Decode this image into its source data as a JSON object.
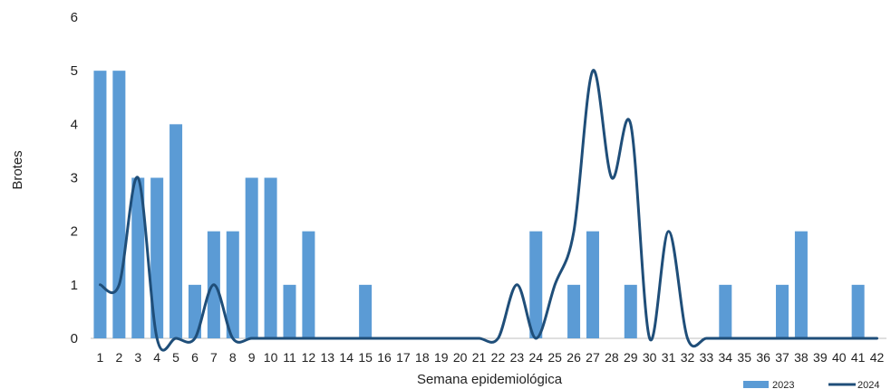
{
  "chart_data": {
    "type": "bar",
    "xlabel": "Semana epidemiológica",
    "ylabel": "Brotes",
    "ylim": [
      0,
      6
    ],
    "yticks": [
      "0",
      "1",
      "2",
      "3",
      "4",
      "5",
      "6"
    ],
    "grid": false,
    "legend_position": "bottom-right",
    "categories": [
      "1",
      "2",
      "3",
      "4",
      "5",
      "6",
      "7",
      "8",
      "9",
      "10",
      "11",
      "12",
      "13",
      "14",
      "15",
      "16",
      "17",
      "18",
      "19",
      "20",
      "21",
      "22",
      "23",
      "24",
      "25",
      "26",
      "27",
      "28",
      "29",
      "30",
      "31",
      "32",
      "33",
      "34",
      "35",
      "36",
      "37",
      "38",
      "39",
      "40",
      "41",
      "42"
    ],
    "series": [
      {
        "name": "2023",
        "type": "bar",
        "color": "#5B9BD5",
        "values": [
          5,
          5,
          3,
          3,
          4,
          1,
          2,
          2,
          3,
          3,
          1,
          2,
          0,
          0,
          1,
          0,
          0,
          0,
          0,
          0,
          0,
          0,
          0,
          2,
          0,
          1,
          2,
          0,
          1,
          0,
          0,
          0,
          0,
          1,
          0,
          0,
          1,
          2,
          0,
          0,
          1,
          0
        ]
      },
      {
        "name": "2024",
        "type": "line",
        "smooth": true,
        "color": "#1F4E79",
        "values": [
          1,
          1,
          3,
          0,
          0,
          0,
          1,
          0,
          0,
          0,
          0,
          0,
          0,
          0,
          0,
          0,
          0,
          0,
          0,
          0,
          0,
          0,
          1,
          0,
          1,
          2,
          5,
          3,
          4,
          0,
          2,
          0,
          0,
          0,
          0,
          0,
          0,
          0,
          0,
          0,
          0,
          0
        ]
      }
    ]
  }
}
